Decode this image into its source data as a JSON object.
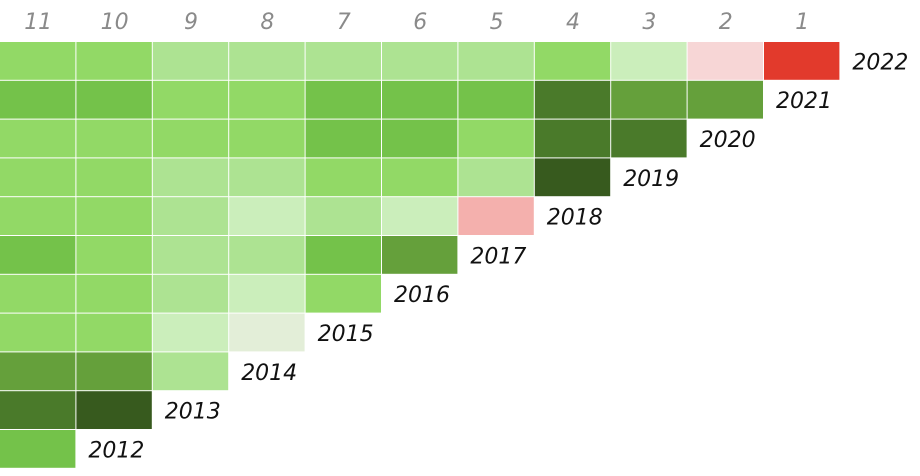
{
  "chart_data": {
    "type": "heatmap",
    "columns": [
      "11",
      "10",
      "9",
      "8",
      "7",
      "6",
      "5",
      "4",
      "3",
      "2",
      "1"
    ],
    "rows": [
      "2022",
      "2021",
      "2020",
      "2019",
      "2018",
      "2017",
      "2016",
      "2015",
      "2014",
      "2013",
      "2012"
    ],
    "values": [
      [
        1,
        1,
        0,
        0,
        0,
        0,
        0,
        1,
        -1,
        -2,
        -5
      ],
      [
        2,
        2,
        1,
        1,
        2,
        2,
        2,
        4,
        3,
        3
      ],
      [
        1,
        1,
        1,
        1,
        2,
        2,
        1,
        4,
        4
      ],
      [
        1,
        1,
        0,
        0,
        1,
        1,
        0,
        5
      ],
      [
        1,
        1,
        0,
        -1,
        0,
        -1,
        -3
      ],
      [
        2,
        1,
        0,
        0,
        2,
        3
      ],
      [
        1,
        1,
        0,
        -1,
        1
      ],
      [
        1,
        1,
        -1,
        -2
      ],
      [
        3,
        3,
        0
      ],
      [
        4,
        5
      ],
      [
        2
      ]
    ],
    "colors": {
      "5": "#375a1e",
      "4": "#4a7a2a",
      "3": "#65a03b",
      "2": "#74c24a",
      "1": "#92d966",
      "0": "#ade392",
      "-1": "#cbeebb",
      "-2": "#e0eed6",
      "-3": "#f4b0ad",
      "-4": "#f7d6d6",
      "-5": "#e23a2c"
    },
    "row_label_colors": {
      "2022": "#111111"
    },
    "override_colors": {
      "0,8": "#cbeebb",
      "0,9": "#f7d6d6",
      "7,3": "#e3eed8"
    },
    "title": "",
    "xlabel": "",
    "ylabel": ""
  }
}
